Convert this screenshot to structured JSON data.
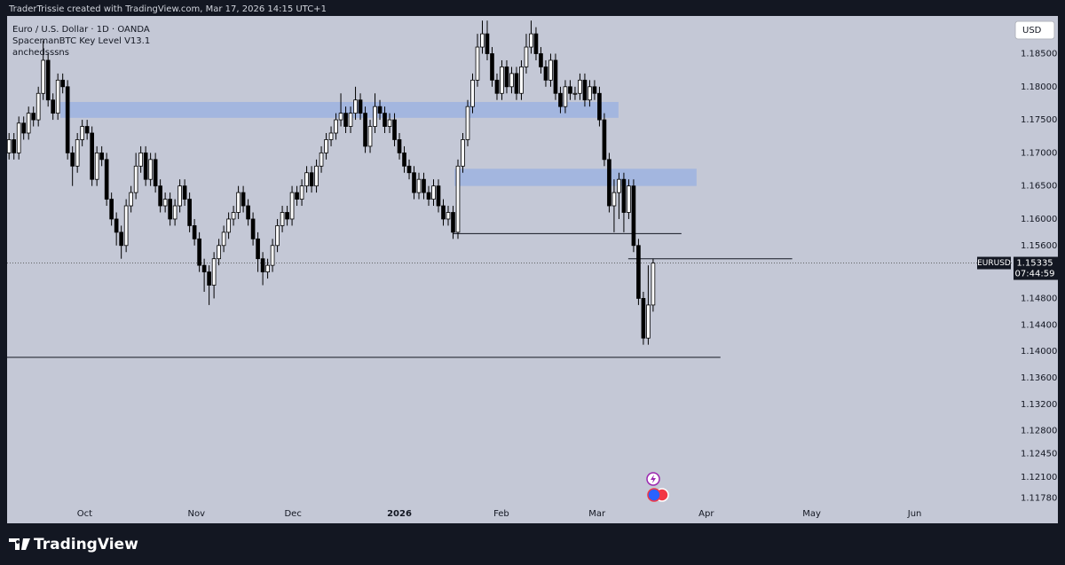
{
  "chart_data": {
    "type": "candlestick",
    "watermark": "TraderTrissie created with TradingView.com, Mar 17, 2026 14:15 UTC+1",
    "legend": [
      "Euro / U.S. Dollar · 1D · OANDA",
      "SpacemanBTC Key Level V13.1",
      "anchedsssns"
    ],
    "symbol": "EURUSD",
    "countdown": "07:44:59",
    "currency": "USD",
    "brand": "TradingView",
    "up_color": "#ffffff",
    "down_color": "#000000",
    "open": [
      1.17,
      1.172,
      1.17,
      1.1745,
      1.173,
      1.176,
      1.175,
      1.179,
      1.184,
      1.178,
      1.176,
      1.181,
      1.18,
      1.17,
      1.168,
      1.172,
      1.174,
      1.173,
      1.166,
      1.17,
      1.169,
      1.163,
      1.16,
      1.158,
      1.156,
      1.162,
      1.164,
      1.168,
      1.17,
      1.166,
      1.169,
      1.165,
      1.162,
      1.163,
      1.16,
      1.162,
      1.165,
      1.163,
      1.159,
      1.157,
      1.153,
      1.152,
      1.15,
      1.154,
      1.156,
      1.158,
      1.16,
      1.161,
      1.164,
      1.162,
      1.16,
      1.157,
      1.154,
      1.152,
      1.153,
      1.156,
      1.159,
      1.161,
      1.16,
      1.164,
      1.163,
      1.165,
      1.167,
      1.165,
      1.168,
      1.17,
      1.172,
      1.173,
      1.175,
      1.176,
      1.174,
      1.176,
      1.178,
      1.176,
      1.171,
      1.174,
      1.177,
      1.176,
      1.174,
      1.175,
      1.172,
      1.17,
      1.168,
      1.167,
      1.164,
      1.166,
      1.164,
      1.163,
      1.165,
      1.162,
      1.16,
      1.161,
      1.158,
      1.168,
      1.172,
      1.177,
      1.181,
      1.186,
      1.188,
      1.185,
      1.181,
      1.179,
      1.183,
      1.18,
      1.182,
      1.179,
      1.183,
      1.186,
      1.188,
      1.185,
      1.183,
      1.181,
      1.184,
      1.179,
      1.177,
      1.18,
      1.179,
      1.179,
      1.181,
      1.178,
      1.18,
      1.179,
      1.175,
      1.169,
      1.162,
      1.164,
      1.166,
      1.161,
      1.165,
      1.156,
      1.148,
      1.142,
      1.147
    ],
    "high": [
      1.173,
      1.173,
      1.1755,
      1.1755,
      1.177,
      1.177,
      1.18,
      1.187,
      1.185,
      1.179,
      1.182,
      1.182,
      1.181,
      1.171,
      1.173,
      1.175,
      1.175,
      1.174,
      1.171,
      1.171,
      1.17,
      1.164,
      1.161,
      1.159,
      1.163,
      1.165,
      1.17,
      1.171,
      1.171,
      1.17,
      1.17,
      1.166,
      1.164,
      1.164,
      1.163,
      1.166,
      1.166,
      1.164,
      1.16,
      1.158,
      1.154,
      1.153,
      1.155,
      1.157,
      1.159,
      1.161,
      1.162,
      1.165,
      1.165,
      1.163,
      1.161,
      1.158,
      1.155,
      1.154,
      1.157,
      1.16,
      1.162,
      1.162,
      1.165,
      1.165,
      1.166,
      1.168,
      1.168,
      1.169,
      1.171,
      1.173,
      1.174,
      1.176,
      1.179,
      1.177,
      1.177,
      1.18,
      1.179,
      1.177,
      1.175,
      1.179,
      1.178,
      1.177,
      1.176,
      1.176,
      1.173,
      1.171,
      1.169,
      1.168,
      1.167,
      1.167,
      1.165,
      1.166,
      1.166,
      1.163,
      1.162,
      1.162,
      1.169,
      1.173,
      1.178,
      1.182,
      1.188,
      1.19,
      1.19,
      1.186,
      1.182,
      1.184,
      1.184,
      1.183,
      1.183,
      1.184,
      1.188,
      1.19,
      1.189,
      1.186,
      1.184,
      1.185,
      1.185,
      1.18,
      1.181,
      1.181,
      1.18,
      1.182,
      1.182,
      1.181,
      1.181,
      1.18,
      1.176,
      1.17,
      1.166,
      1.167,
      1.167,
      1.166,
      1.166,
      1.157,
      1.149,
      1.153,
      1.154
    ],
    "low": [
      1.169,
      1.169,
      1.169,
      1.172,
      1.172,
      1.174,
      1.174,
      1.178,
      1.177,
      1.175,
      1.175,
      1.179,
      1.169,
      1.165,
      1.167,
      1.171,
      1.172,
      1.165,
      1.165,
      1.168,
      1.162,
      1.159,
      1.156,
      1.154,
      1.155,
      1.161,
      1.163,
      1.167,
      1.165,
      1.165,
      1.164,
      1.161,
      1.161,
      1.159,
      1.159,
      1.161,
      1.162,
      1.158,
      1.156,
      1.152,
      1.149,
      1.147,
      1.148,
      1.153,
      1.155,
      1.157,
      1.159,
      1.16,
      1.161,
      1.159,
      1.156,
      1.152,
      1.15,
      1.151,
      1.152,
      1.155,
      1.158,
      1.159,
      1.159,
      1.162,
      1.162,
      1.164,
      1.164,
      1.164,
      1.167,
      1.169,
      1.171,
      1.172,
      1.174,
      1.173,
      1.173,
      1.175,
      1.175,
      1.17,
      1.17,
      1.173,
      1.175,
      1.173,
      1.173,
      1.171,
      1.169,
      1.167,
      1.166,
      1.163,
      1.163,
      1.163,
      1.162,
      1.162,
      1.161,
      1.159,
      1.159,
      1.157,
      1.157,
      1.167,
      1.171,
      1.176,
      1.18,
      1.185,
      1.184,
      1.18,
      1.178,
      1.178,
      1.179,
      1.179,
      1.178,
      1.178,
      1.182,
      1.185,
      1.184,
      1.182,
      1.18,
      1.18,
      1.178,
      1.176,
      1.176,
      1.178,
      1.178,
      1.178,
      1.177,
      1.177,
      1.178,
      1.174,
      1.168,
      1.161,
      1.158,
      1.16,
      1.158,
      1.16,
      1.155,
      1.147,
      1.141,
      1.141,
      1.146
    ],
    "close": [
      1.172,
      1.17,
      1.1745,
      1.173,
      1.176,
      1.175,
      1.179,
      1.184,
      1.178,
      1.176,
      1.181,
      1.18,
      1.17,
      1.168,
      1.172,
      1.174,
      1.173,
      1.166,
      1.17,
      1.169,
      1.163,
      1.16,
      1.158,
      1.156,
      1.162,
      1.164,
      1.168,
      1.17,
      1.166,
      1.169,
      1.165,
      1.162,
      1.163,
      1.16,
      1.162,
      1.165,
      1.163,
      1.159,
      1.157,
      1.153,
      1.152,
      1.15,
      1.154,
      1.156,
      1.158,
      1.16,
      1.161,
      1.164,
      1.162,
      1.16,
      1.157,
      1.154,
      1.152,
      1.153,
      1.156,
      1.159,
      1.161,
      1.16,
      1.164,
      1.163,
      1.165,
      1.167,
      1.165,
      1.168,
      1.17,
      1.172,
      1.173,
      1.175,
      1.176,
      1.174,
      1.176,
      1.178,
      1.176,
      1.171,
      1.174,
      1.177,
      1.176,
      1.174,
      1.175,
      1.172,
      1.17,
      1.168,
      1.167,
      1.164,
      1.166,
      1.164,
      1.163,
      1.165,
      1.162,
      1.16,
      1.161,
      1.158,
      1.168,
      1.172,
      1.177,
      1.181,
      1.186,
      1.188,
      1.185,
      1.181,
      1.179,
      1.183,
      1.18,
      1.182,
      1.179,
      1.183,
      1.186,
      1.188,
      1.185,
      1.183,
      1.181,
      1.184,
      1.179,
      1.177,
      1.18,
      1.179,
      1.179,
      1.181,
      1.178,
      1.18,
      1.179,
      1.175,
      1.169,
      1.162,
      1.164,
      1.166,
      1.161,
      1.165,
      1.156,
      1.148,
      1.142,
      1.147,
      1.15335
    ],
    "zones": [
      {
        "x": [
          10.5,
          124.9
        ],
        "y": [
          1.1753,
          1.1777
        ],
        "color": "#9eb3e0"
      },
      {
        "x": [
          91.3,
          140.9
        ],
        "y": [
          1.165,
          1.1676
        ],
        "color": "#9eb3e0"
      }
    ],
    "lines": [
      {
        "x": [
          90.9,
          137.8
        ],
        "y": 1.1578
      },
      {
        "x": [
          -0.4,
          145.8
        ],
        "y": 1.1391
      },
      {
        "x": [
          126.9,
          160.5
        ],
        "y": 1.154
      }
    ],
    "xlim": [
      -0.4,
      205.5
    ],
    "xticks": [
      {
        "value": 15.5,
        "label": "Oct"
      },
      {
        "value": 38.4,
        "label": "Nov"
      },
      {
        "value": 58.2,
        "label": "Dec"
      },
      {
        "value": 80,
        "label": "2026"
      },
      {
        "value": 100.9,
        "label": "Feb"
      },
      {
        "value": 120.5,
        "label": "Mar"
      },
      {
        "value": 142.9,
        "label": "Apr"
      },
      {
        "value": 164.5,
        "label": "May"
      },
      {
        "value": 185.6,
        "label": "Jun"
      }
    ],
    "ylim": [
      1.114,
      1.1907
    ],
    "yticks": [
      {
        "value": 1.1178,
        "label": "1.11780"
      },
      {
        "value": 1.121,
        "label": "1.12100"
      },
      {
        "value": 1.1245,
        "label": "1.12450"
      },
      {
        "value": 1.128,
        "label": "1.12800"
      },
      {
        "value": 1.132,
        "label": "1.13200"
      },
      {
        "value": 1.136,
        "label": "1.13600"
      },
      {
        "value": 1.14,
        "label": "1.14000"
      },
      {
        "value": 1.144,
        "label": "1.14400"
      },
      {
        "value": 1.148,
        "label": "1.14800"
      },
      {
        "value": 1.156,
        "label": "1.15600"
      },
      {
        "value": 1.16,
        "label": "1.16000"
      },
      {
        "value": 1.165,
        "label": "1.16500"
      },
      {
        "value": 1.17,
        "label": "1.17000"
      },
      {
        "value": 1.175,
        "label": "1.17500"
      },
      {
        "value": 1.18,
        "label": "1.18000"
      },
      {
        "value": 1.185,
        "label": "1.18500"
      }
    ]
  }
}
